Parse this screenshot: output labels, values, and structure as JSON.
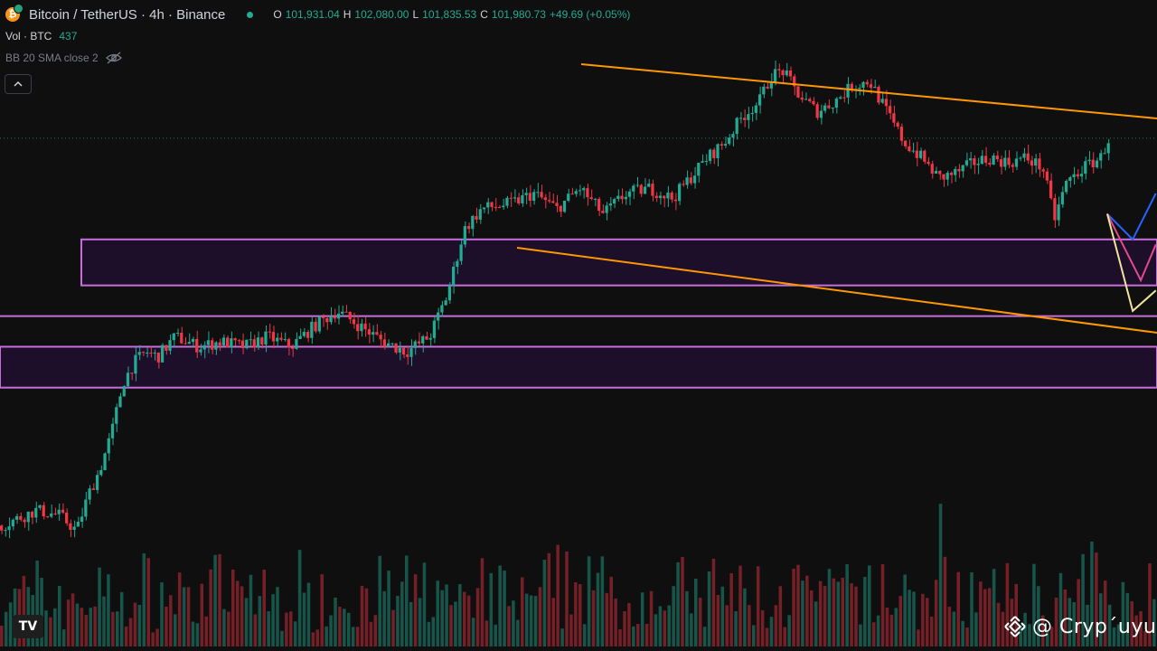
{
  "header": {
    "symbol_title": "Bitcoin / TetherUS · 4h · Binance",
    "ohlc": {
      "o_label": "O",
      "o": "101,931.04",
      "h_label": "H",
      "h": "102,080.00",
      "l_label": "L",
      "l": "101,835.53",
      "c_label": "C",
      "c": "101,980.73",
      "change": "+49.69 (+0.05%)"
    },
    "vol_label": "Vol · BTC",
    "vol_value": "437",
    "bb_label": "BB 20 SMA close 2",
    "icons": {
      "coin": "bitcoin-icon",
      "eye": "eye-off-icon",
      "collapse": "chevron-up-icon"
    }
  },
  "watermark": {
    "text": "@ Cryp´uyu",
    "icon": "binance-icon"
  },
  "logo": {
    "text": "TV",
    "icon": "tradingview-logo"
  },
  "colors": {
    "background": "#0f0f0f",
    "up": "#22ab94",
    "down": "#f23645",
    "trendline": "#ff9800",
    "zone_border": "#c86edb",
    "zone_fill": "#1d0f2a",
    "projection_blue": "#2962ff",
    "projection_pink": "#e04a8f",
    "projection_yellow": "#f2e39c",
    "last_price_line": "#22ab94"
  },
  "chart_data": {
    "type": "candlestick",
    "symbol": "BTCUSDT",
    "timeframe": "4h",
    "exchange": "Binance",
    "y_range": [
      92300,
      103800
    ],
    "last_price": 101980.73,
    "price_path": [
      [
        0,
        94400
      ],
      [
        0.03,
        94700
      ],
      [
        0.05,
        94600
      ],
      [
        0.065,
        94300
      ],
      [
        0.075,
        95000
      ],
      [
        0.085,
        95500
      ],
      [
        0.095,
        96200
      ],
      [
        0.105,
        97200
      ],
      [
        0.115,
        97600
      ],
      [
        0.125,
        97800
      ],
      [
        0.135,
        97700
      ],
      [
        0.15,
        98100
      ],
      [
        0.17,
        97900
      ],
      [
        0.19,
        98000
      ],
      [
        0.21,
        97900
      ],
      [
        0.23,
        98100
      ],
      [
        0.25,
        97900
      ],
      [
        0.27,
        98300
      ],
      [
        0.29,
        98600
      ],
      [
        0.31,
        98300
      ],
      [
        0.33,
        98000
      ],
      [
        0.35,
        97800
      ],
      [
        0.37,
        98100
      ],
      [
        0.385,
        98900
      ],
      [
        0.4,
        100200
      ],
      [
        0.415,
        100600
      ],
      [
        0.44,
        100700
      ],
      [
        0.46,
        100900
      ],
      [
        0.48,
        100600
      ],
      [
        0.5,
        101000
      ],
      [
        0.52,
        100500
      ],
      [
        0.54,
        100900
      ],
      [
        0.56,
        101000
      ],
      [
        0.58,
        100800
      ],
      [
        0.595,
        101200
      ],
      [
        0.61,
        101600
      ],
      [
        0.625,
        101900
      ],
      [
        0.64,
        102400
      ],
      [
        0.655,
        102700
      ],
      [
        0.665,
        103200
      ],
      [
        0.675,
        103300
      ],
      [
        0.69,
        102800
      ],
      [
        0.705,
        102500
      ],
      [
        0.72,
        102700
      ],
      [
        0.735,
        103000
      ],
      [
        0.75,
        103100
      ],
      [
        0.765,
        102500
      ],
      [
        0.78,
        101900
      ],
      [
        0.795,
        101600
      ],
      [
        0.81,
        101200
      ],
      [
        0.825,
        101300
      ],
      [
        0.84,
        101500
      ],
      [
        0.855,
        101600
      ],
      [
        0.87,
        101500
      ],
      [
        0.885,
        101600
      ],
      [
        0.9,
        101400
      ],
      [
        0.91,
        100400
      ],
      [
        0.92,
        101100
      ],
      [
        0.935,
        101400
      ],
      [
        0.95,
        101600
      ],
      [
        0.965,
        102400
      ],
      [
        0.98,
        103100
      ],
      [
        0.995,
        102900
      ]
    ],
    "trendlines": [
      {
        "name": "upper",
        "from": [
          102900,
          0.505
        ],
        "to": [
          102900,
          0.999
        ]
      },
      {
        "name": "lower",
        "from": [
          101100,
          0.447
        ],
        "to": [
          99200,
          0.999
        ]
      }
    ],
    "zones": [
      {
        "top": 100000,
        "bottom": 99100
      },
      {
        "top": 98500,
        "bottom": 98500
      },
      {
        "top": 97900,
        "bottom": 97100
      }
    ],
    "projections": [
      {
        "color_key": "projection_blue",
        "points": [
          [
            0.957,
            100500
          ],
          [
            0.979,
            100000
          ],
          [
            0.999,
            100900
          ]
        ]
      },
      {
        "color_key": "projection_pink",
        "points": [
          [
            0.957,
            100500
          ],
          [
            0.986,
            99200
          ],
          [
            0.999,
            99900
          ]
        ]
      },
      {
        "color_key": "projection_yellow",
        "points": [
          [
            0.957,
            100500
          ],
          [
            0.979,
            98600
          ],
          [
            0.999,
            99000
          ]
        ]
      }
    ],
    "volume": {
      "candles": 260,
      "seed": 7
    }
  }
}
